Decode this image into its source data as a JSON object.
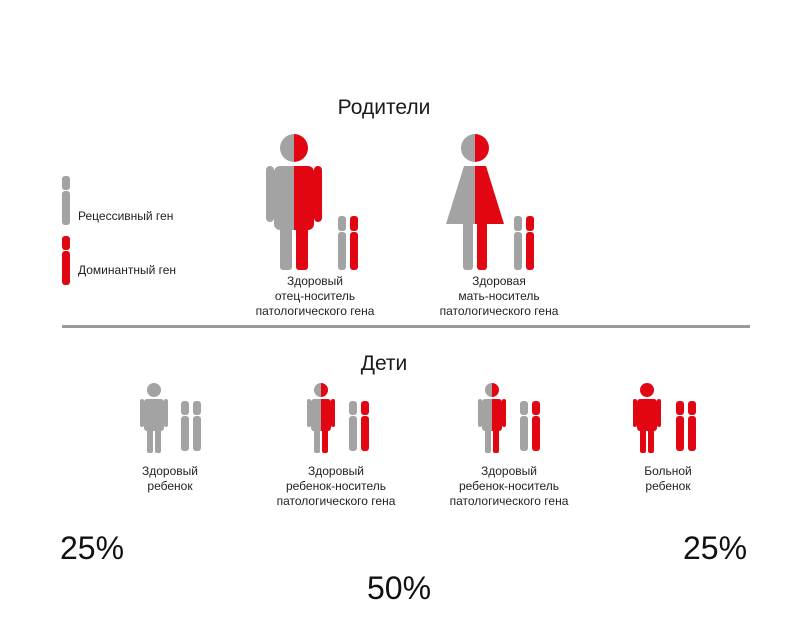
{
  "colors": {
    "recessive": "#a3a3a3",
    "dominant": "#e20613",
    "divider": "#9a9a9a",
    "text": "#222222"
  },
  "legend": {
    "recessive_label": "Рецессивный ген",
    "dominant_label": "Доминантный ген"
  },
  "parents": {
    "heading": "Родители",
    "father_caption": [
      "Здоровый",
      "отец-носитель",
      "патологического гена"
    ],
    "mother_caption": [
      "Здоровая",
      "мать-носитель",
      "патологического гена"
    ]
  },
  "children": {
    "heading": "Дети",
    "items": [
      {
        "caption": [
          "Здоровый",
          "ребенок"
        ],
        "genotype": [
          "recessive",
          "recessive"
        ]
      },
      {
        "caption": [
          "Здоровый",
          "ребенок-носитель",
          "патологического гена"
        ],
        "genotype": [
          "recessive",
          "dominant"
        ]
      },
      {
        "caption": [
          "Здоровый",
          "ребенок-носитель",
          "патологического гена"
        ],
        "genotype": [
          "recessive",
          "dominant"
        ]
      },
      {
        "caption": [
          "Больной",
          "ребенок"
        ],
        "genotype": [
          "dominant",
          "dominant"
        ]
      }
    ]
  },
  "percentages": {
    "left": "25%",
    "middle": "50%",
    "right": "25%"
  }
}
